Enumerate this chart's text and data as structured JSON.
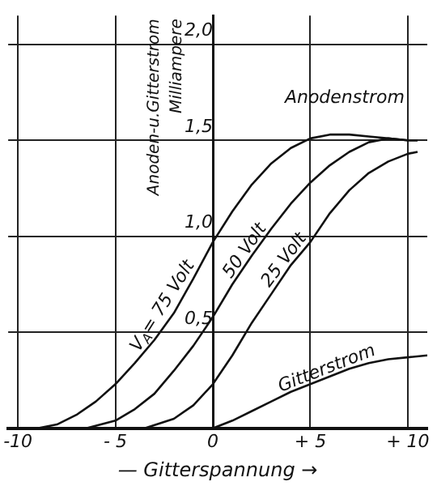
{
  "chart_data": {
    "type": "line",
    "xlabel": "— Gitterspannung →",
    "ylabel": "Anoden-u.Gitterstrom\nMilliampere",
    "xlim": [
      -10.5,
      11
    ],
    "ylim": [
      0,
      2.15
    ],
    "xticks": [
      -10,
      {
        "value": -5,
        "label": "- 5"
      },
      0,
      {
        "value": 5,
        "label": "+ 5"
      },
      {
        "value": 10,
        "label": "+ 10"
      }
    ],
    "yticks": [
      {
        "value": 0,
        "label": null
      },
      {
        "value": 0.5,
        "label": "0,5"
      },
      {
        "value": 1,
        "label": "1,0"
      },
      {
        "value": 1.5,
        "label": "1,5"
      },
      {
        "value": 2,
        "label": "2,0"
      }
    ],
    "grid": true,
    "legend": false,
    "marker": "none",
    "line_style": "solid",
    "annotations": [
      "Anodenstrom"
    ],
    "series": [
      {
        "name": "V$_{A}$= 75 Volt",
        "color": "#111111",
        "x": [
          -9,
          -8,
          -7,
          -6,
          -5,
          -4,
          -3,
          -2,
          -1,
          0,
          1,
          2,
          3,
          4,
          5,
          6,
          7,
          8,
          9,
          10,
          10.5
        ],
        "values": [
          0,
          0.02,
          0.07,
          0.14,
          0.23,
          0.34,
          0.46,
          0.6,
          0.78,
          0.97,
          1.13,
          1.27,
          1.38,
          1.46,
          1.51,
          1.53,
          1.53,
          1.52,
          1.51,
          1.5,
          1.5
        ]
      },
      {
        "name": "50 Volt",
        "color": "#111111",
        "x": [
          -6.5,
          -5,
          -4,
          -3,
          -2,
          -1,
          0,
          1,
          2,
          3,
          4,
          5,
          6,
          7,
          8,
          9,
          10,
          10.5
        ],
        "values": [
          0,
          0.04,
          0.1,
          0.18,
          0.3,
          0.43,
          0.58,
          0.75,
          0.9,
          1.04,
          1.17,
          1.28,
          1.37,
          1.44,
          1.49,
          1.51,
          1.5,
          1.5
        ]
      },
      {
        "name": "25 Volt",
        "color": "#111111",
        "x": [
          -3.5,
          -2,
          -1,
          0,
          1,
          2,
          3,
          4,
          5,
          6,
          7,
          8,
          9,
          10,
          10.5
        ],
        "values": [
          0,
          0.05,
          0.12,
          0.23,
          0.38,
          0.55,
          0.7,
          0.85,
          0.97,
          1.12,
          1.24,
          1.33,
          1.39,
          1.43,
          1.44
        ]
      },
      {
        "name": "Gitterstrom",
        "color": "#111111",
        "x": [
          0,
          1,
          2,
          3,
          4,
          5,
          6,
          7,
          8,
          9,
          10,
          11
        ],
        "values": [
          0,
          0.04,
          0.09,
          0.14,
          0.19,
          0.23,
          0.27,
          0.31,
          0.34,
          0.36,
          0.37,
          0.38
        ]
      }
    ]
  }
}
